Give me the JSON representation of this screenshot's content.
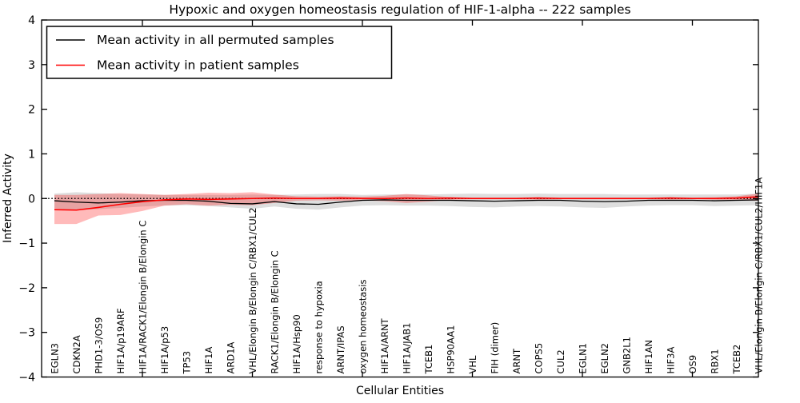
{
  "chart_data": {
    "type": "line",
    "title": "Hypoxic and oxygen homeostasis regulation of HIF-1-alpha -- 222 samples",
    "xlabel": "Cellular Entities",
    "ylabel": "Inferred Activity",
    "ylim": [
      -4,
      4
    ],
    "ytick_values": [
      4,
      3,
      2,
      1,
      0,
      -1,
      -2,
      -3,
      -4
    ],
    "ytick_labels": [
      "4",
      "3",
      "2",
      "1",
      "0",
      "−1",
      "−2",
      "−3",
      "−4"
    ],
    "xtick_category_indices": [
      4,
      9,
      14,
      19,
      24,
      29
    ],
    "grid": false,
    "legend_position": "upper-left",
    "zero_reference_line": {
      "y": 0,
      "style": "dotted",
      "color": "#000000"
    },
    "categories": [
      "EGLN3",
      "CDKN2A",
      "PHD1-3/OS9",
      "HIF1A/p19ARF",
      "HIF1A/RACK1/Elongin B/Elongin C",
      "HIF1A/p53",
      "TP53",
      "HIF1A",
      "ARD1A",
      "VHL/Elongin B/Elongin C/RBX1/CUL2",
      "RACK1/Elongin B/Elongin C",
      "HIF1A/Hsp90",
      "response to hypoxia",
      "ARNT/IPAS",
      "oxygen homeostasis",
      "HIF1A/ARNT",
      "HIF1A/JAB1",
      "TCEB1",
      "HSP90AA1",
      "VHL",
      "FIH (dimer)",
      "ARNT",
      "COPS5",
      "CUL2",
      "EGLN1",
      "EGLN2",
      "GNB2L1",
      "HIF1AN",
      "HIF3A",
      "OS9",
      "RBX1",
      "TCEB2",
      "VHL/Elongin B/Elongin C/RBX1/CUL2/HIF1A"
    ],
    "series": [
      {
        "name": "Mean activity in all permuted samples",
        "line_color": "#000000",
        "band_color": "#000000",
        "band_opacity": 0.13,
        "values": [
          -0.05,
          -0.08,
          -0.1,
          -0.08,
          -0.05,
          -0.04,
          -0.04,
          -0.06,
          -0.11,
          -0.12,
          -0.07,
          -0.12,
          -0.13,
          -0.08,
          -0.04,
          -0.03,
          -0.04,
          -0.04,
          -0.04,
          -0.05,
          -0.06,
          -0.05,
          -0.04,
          -0.04,
          -0.06,
          -0.07,
          -0.06,
          -0.04,
          -0.04,
          -0.04,
          -0.05,
          -0.04,
          -0.03
        ],
        "band_upper": [
          0.11,
          0.14,
          0.12,
          0.1,
          0.09,
          0.08,
          0.08,
          0.08,
          0.08,
          0.09,
          0.08,
          0.09,
          0.1,
          0.1,
          0.08,
          0.09,
          0.09,
          0.09,
          0.1,
          0.11,
          0.1,
          0.1,
          0.11,
          0.1,
          0.1,
          0.1,
          0.09,
          0.09,
          0.09,
          0.09,
          0.09,
          0.09,
          0.11
        ],
        "band_lower": [
          -0.22,
          -0.26,
          -0.24,
          -0.21,
          -0.18,
          -0.16,
          -0.15,
          -0.17,
          -0.2,
          -0.23,
          -0.18,
          -0.23,
          -0.25,
          -0.2,
          -0.16,
          -0.15,
          -0.16,
          -0.16,
          -0.17,
          -0.19,
          -0.2,
          -0.18,
          -0.17,
          -0.18,
          -0.2,
          -0.21,
          -0.18,
          -0.16,
          -0.15,
          -0.15,
          -0.17,
          -0.16,
          -0.15
        ]
      },
      {
        "name": "Mean activity in patient samples",
        "line_color": "#ff0000",
        "band_color": "#ff0000",
        "band_opacity": 0.27,
        "values": [
          -0.25,
          -0.26,
          -0.2,
          -0.13,
          -0.07,
          -0.03,
          -0.01,
          -0.02,
          -0.01,
          0.0,
          0.01,
          0.0,
          0.0,
          0.01,
          0.0,
          0.0,
          0.01,
          0.0,
          0.01,
          0.0,
          0.0,
          0.0,
          0.01,
          0.0,
          0.0,
          0.0,
          0.0,
          0.0,
          0.01,
          0.0,
          0.0,
          0.01,
          0.04
        ],
        "band_upper": [
          0.08,
          0.08,
          0.1,
          0.12,
          0.1,
          0.08,
          0.1,
          0.13,
          0.12,
          0.14,
          0.09,
          0.05,
          0.04,
          0.05,
          0.04,
          0.06,
          0.1,
          0.07,
          0.03,
          0.02,
          0.02,
          0.02,
          0.03,
          0.02,
          0.02,
          0.02,
          0.02,
          0.02,
          0.03,
          0.02,
          0.03,
          0.05,
          0.11
        ],
        "band_lower": [
          -0.57,
          -0.57,
          -0.38,
          -0.37,
          -0.28,
          -0.16,
          -0.13,
          -0.16,
          -0.14,
          -0.15,
          -0.1,
          -0.05,
          -0.04,
          -0.05,
          -0.04,
          -0.06,
          -0.1,
          -0.07,
          -0.03,
          -0.02,
          -0.02,
          -0.02,
          -0.03,
          -0.02,
          -0.02,
          -0.02,
          -0.02,
          -0.02,
          -0.03,
          -0.02,
          -0.03,
          -0.04,
          -0.05
        ]
      }
    ]
  }
}
